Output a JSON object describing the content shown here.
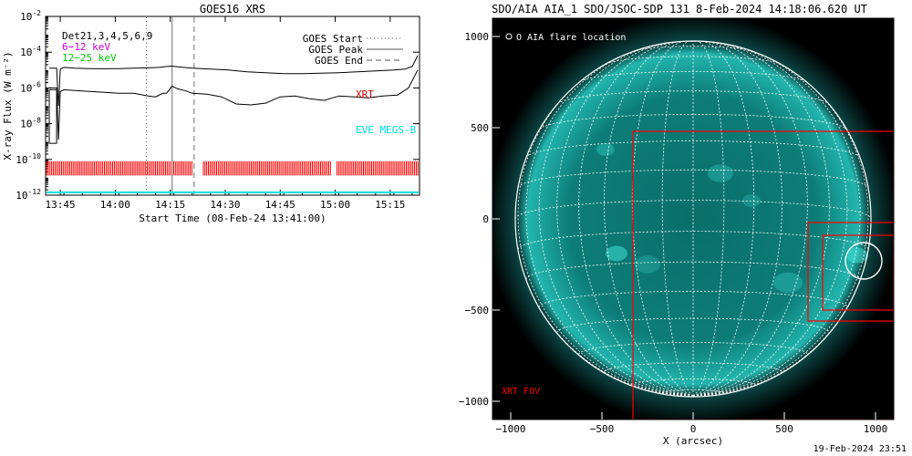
{
  "chart_data": [
    {
      "type": "line",
      "title": "GOES16 XRS",
      "xlabel": "Start Time (08-Feb-24 13:41:00)",
      "ylabel": "X-ray Flux (W m⁻²)",
      "y_scale": "log",
      "ylim": [
        1e-12,
        0.01
      ],
      "xlim_minutes": [
        0,
        102
      ],
      "x_ticks": [
        {
          "label": "13:45",
          "t": 4
        },
        {
          "label": "14:00",
          "t": 19
        },
        {
          "label": "14:15",
          "t": 34
        },
        {
          "label": "14:30",
          "t": 49
        },
        {
          "label": "14:45",
          "t": 64
        },
        {
          "label": "15:00",
          "t": 79
        },
        {
          "label": "15:15",
          "t": 94
        }
      ],
      "y_ticks": [
        {
          "base": "10",
          "exp": "-12",
          "v": -12
        },
        {
          "base": "10",
          "exp": "-10",
          "v": -10
        },
        {
          "base": "10",
          "exp": "-8",
          "v": -8
        },
        {
          "base": "10",
          "exp": "-6",
          "v": -6
        },
        {
          "base": "10",
          "exp": "-4",
          "v": -4
        },
        {
          "base": "10",
          "exp": "-2",
          "v": -2
        }
      ],
      "legend_left": [
        {
          "text": "Det21,3,4,5,6,9",
          "color": "#000000"
        },
        {
          "text": "6−12 keV",
          "color": "#cc00cc"
        },
        {
          "text": "12−25 keV",
          "color": "#00cc00"
        }
      ],
      "legend_right": [
        {
          "text": "GOES Start",
          "style": "dotted"
        },
        {
          "text": "GOES Peak",
          "style": "solid"
        },
        {
          "text": "GOES End",
          "style": "dashed"
        }
      ],
      "labels": {
        "xrt": "XRT",
        "eve": "EVE MEGS-B"
      },
      "colors": {
        "xrt": "#cc0000",
        "eve": "#00e0e0",
        "ticks": "#ff0000"
      },
      "event_lines": {
        "start": 27.5,
        "peak": 34.5,
        "end": 40.5
      },
      "series": [
        {
          "band": "long",
          "x": [
            1,
            3,
            3.5,
            4,
            5,
            8,
            12,
            16,
            20,
            24,
            28,
            31,
            33,
            34.5,
            36,
            40,
            45,
            50,
            55,
            60,
            65,
            70,
            75,
            80,
            85,
            90,
            95,
            98,
            100,
            101.5
          ],
          "log_y": [
            -4.9,
            -4.9,
            -7.0,
            -4.95,
            -4.85,
            -4.9,
            -4.92,
            -4.93,
            -4.92,
            -4.9,
            -4.88,
            -4.85,
            -4.8,
            -4.78,
            -4.82,
            -4.9,
            -4.95,
            -5.0,
            -5.1,
            -5.15,
            -5.2,
            -5.2,
            -5.18,
            -5.15,
            -5.1,
            -5.05,
            -5.0,
            -4.95,
            -4.8,
            -4.2
          ]
        },
        {
          "band": "short",
          "x": [
            1,
            3,
            3.5,
            4,
            5,
            8,
            12,
            16,
            20,
            24,
            28,
            30,
            32,
            33,
            34.5,
            36,
            38,
            40,
            44,
            48,
            52,
            56,
            60,
            64,
            68,
            72,
            76,
            80,
            84,
            88,
            92,
            96,
            99,
            101.5
          ],
          "log_y": [
            -6.0,
            -6.0,
            -8.9,
            -6.2,
            -6.1,
            -6.15,
            -6.2,
            -6.25,
            -6.3,
            -6.3,
            -6.45,
            -6.5,
            -6.3,
            -6.3,
            -5.9,
            -6.05,
            -6.15,
            -6.3,
            -6.35,
            -6.5,
            -6.9,
            -6.95,
            -6.85,
            -6.5,
            -6.45,
            -6.6,
            -6.7,
            -6.45,
            -6.5,
            -6.55,
            -6.45,
            -6.4,
            -6.0,
            -5.0
          ]
        }
      ]
    },
    {
      "type": "scatter",
      "title": "SDO/AIA AIA_1 SDO/JSOC-SDP 131  8-Feb-2024 14:18:06.620 UT",
      "xlabel": "X (arcsec)",
      "ylabel": "",
      "xlim": [
        -1100,
        1100
      ],
      "ylim": [
        -1100,
        1100
      ],
      "x_ticks": [
        -1000,
        -500,
        0,
        500,
        1000
      ],
      "y_ticks": [
        -1000,
        -500,
        0,
        500,
        1000
      ],
      "solar_radius_arcsec": 975,
      "legend": "O AIA flare location",
      "fov_label": "XRT FOV",
      "colors": {
        "disk": "#1aa6a0",
        "fov": "#ff0000",
        "grid": "#ffffff"
      },
      "flare_location": {
        "x": 935,
        "y": -230,
        "r": 100
      },
      "fov_boxes": [
        {
          "x0": -330,
          "x1": 1100,
          "y0": -1100,
          "y1": 480
        },
        {
          "x0": 630,
          "x1": 1100,
          "y0": -560,
          "y1": -20
        },
        {
          "x0": 710,
          "x1": 1100,
          "y0": -500,
          "y1": -90
        }
      ]
    }
  ],
  "timestamp": "19-Feb-2024 23:51"
}
